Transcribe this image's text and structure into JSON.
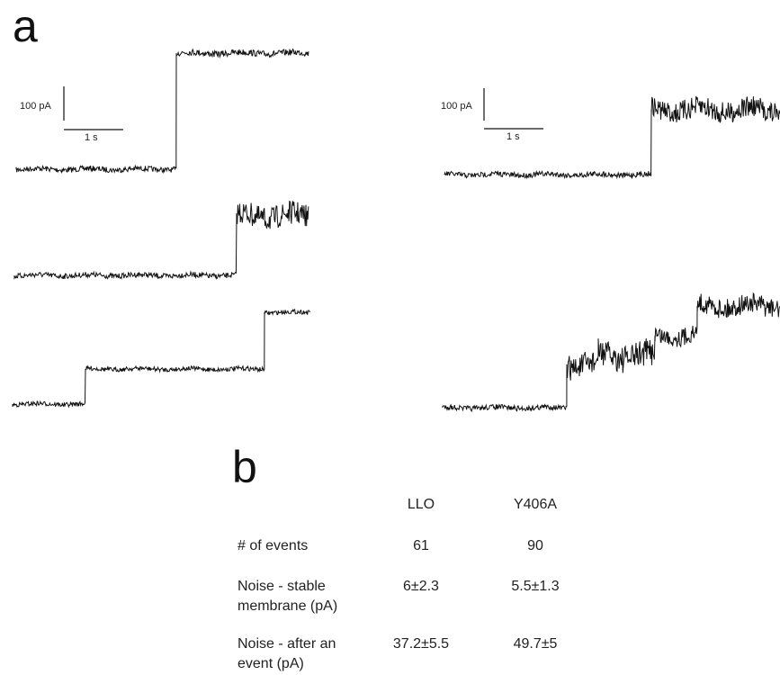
{
  "panel_a": {
    "letter": "a",
    "left_scalebar": {
      "current_label": "100 pA",
      "time_label": "1 s"
    },
    "right_scalebar": {
      "current_label": "100 pA",
      "time_label": "1 s"
    }
  },
  "panel_b": {
    "letter": "b",
    "columns": [
      "LLO",
      "Y406A"
    ],
    "rows": [
      {
        "label": "# of events",
        "values": [
          "61",
          "90"
        ]
      },
      {
        "label": "Noise - stable membrane (pA)",
        "values": [
          "6±2.3",
          "5.5±1.3"
        ]
      },
      {
        "label": "Noise - after an event (pA)",
        "values": [
          "37.2±5.5",
          "49.7±5"
        ]
      }
    ]
  }
}
